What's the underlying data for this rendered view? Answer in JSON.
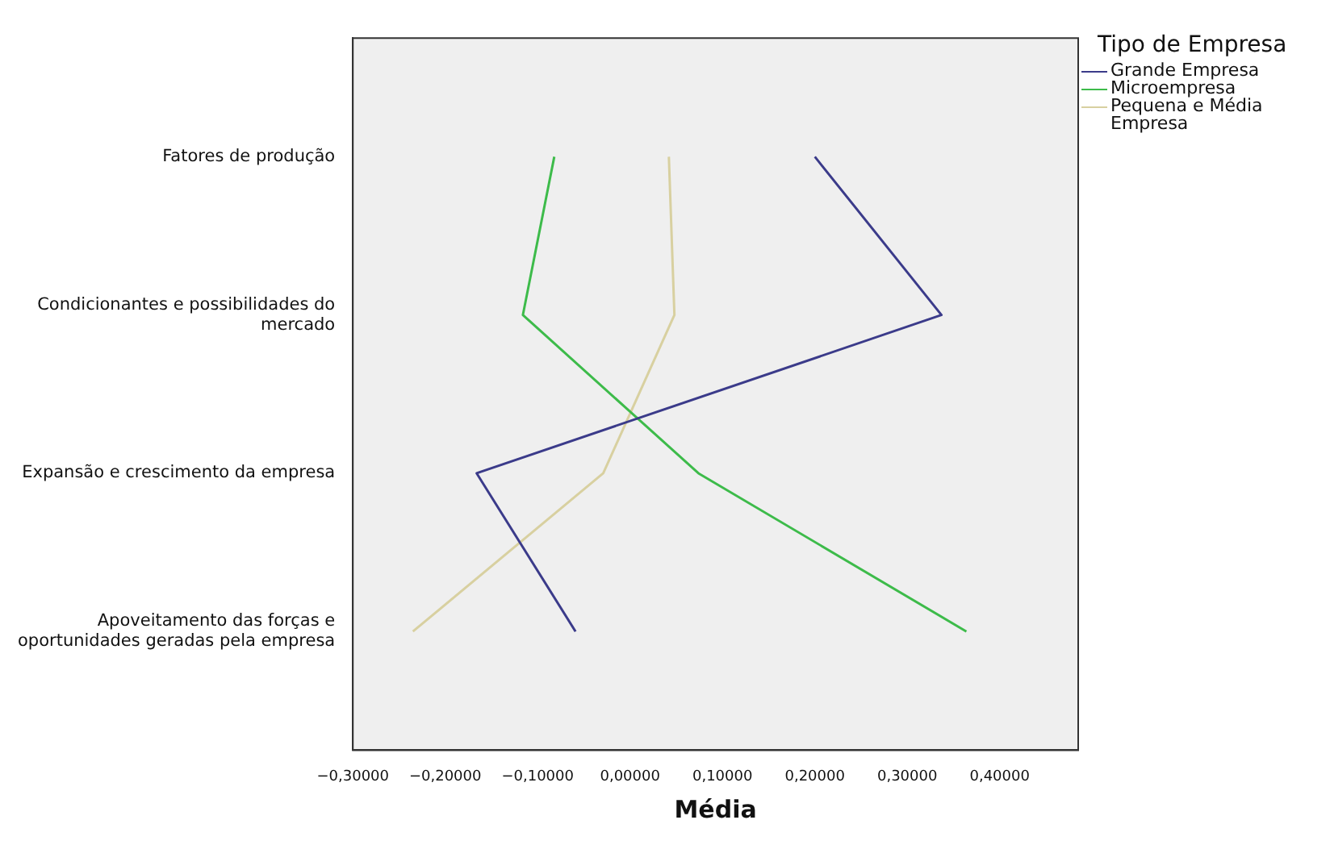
{
  "chart_data": {
    "type": "line",
    "orientation": "horizontal",
    "xlabel": "Média",
    "legend_title": "Tipo de Empresa",
    "legend": "top right",
    "grid": false,
    "marker": "none",
    "categories": [
      "Fatores de produção",
      "Condicionantes e possibilidades do mercado",
      "Expansão e crescimento da empresa",
      "Apoveitamento das forças e oportunidades geradas pela empresa"
    ],
    "xlim": [
      -0.3,
      0.485
    ],
    "xticks": [
      {
        "value": -0.3,
        "label": "−0,30000"
      },
      {
        "value": -0.2,
        "label": "−0,20000"
      },
      {
        "value": -0.1,
        "label": "−0,10000"
      },
      {
        "value": 0,
        "label": "0,00000"
      },
      {
        "value": 0.1,
        "label": "0,10000"
      },
      {
        "value": 0.2,
        "label": "0,20000"
      },
      {
        "value": 0.3,
        "label": "0,30000"
      },
      {
        "value": 0.4,
        "label": "0,40000"
      }
    ],
    "series": [
      {
        "name": "Grande Empresa",
        "color": "#3b3b8a",
        "values": [
          0.2,
          0.337,
          -0.166,
          -0.059
        ]
      },
      {
        "name": "Microempresa",
        "color": "#3dbb4a",
        "values": [
          -0.082,
          -0.116,
          0.074,
          0.364
        ]
      },
      {
        "name": "Pequena e Média Empresa",
        "color": "#d8d0a0",
        "values": [
          0.042,
          0.048,
          -0.029,
          -0.235
        ]
      }
    ]
  }
}
